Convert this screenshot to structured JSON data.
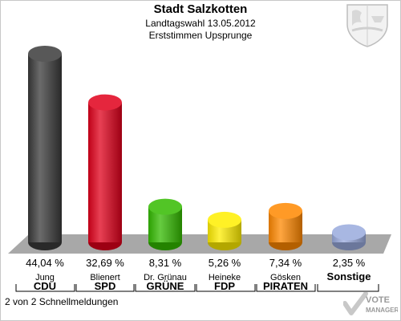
{
  "header": {
    "title": "Stadt Salzkotten",
    "subtitle_date": "Landtagswahl 13.05.2012",
    "subtitle_type": "Erststimmen Upsprunge"
  },
  "footer": {
    "text": "2 von 2 Schnellmeldungen"
  },
  "logo": {
    "line1": "VOTE",
    "line2": "MANAGER"
  },
  "colors": {
    "CDU": "#3a3a3a",
    "SPD": "#e0001b",
    "GRUENE": "#33bb00",
    "FDP": "#ffee00",
    "PIRATEN": "#ff8800",
    "Sonstige": "#99aadd",
    "floor": "#a8a8a8"
  },
  "chart_data": {
    "type": "bar",
    "categories": [
      "CDU",
      "SPD",
      "GRÜNE",
      "FDP",
      "PIRATEN",
      "Sonstige"
    ],
    "candidates": [
      "Jung",
      "Blienert",
      "Dr. Grünau",
      "Heineke",
      "Gösken",
      ""
    ],
    "values": [
      44.04,
      32.69,
      8.31,
      5.26,
      7.34,
      2.35
    ],
    "value_labels": [
      "44,04 %",
      "32,69 %",
      "8,31 %",
      "5,26 %",
      "7,34 %",
      "2,35 %"
    ],
    "ylim": [
      0,
      44.04
    ]
  }
}
